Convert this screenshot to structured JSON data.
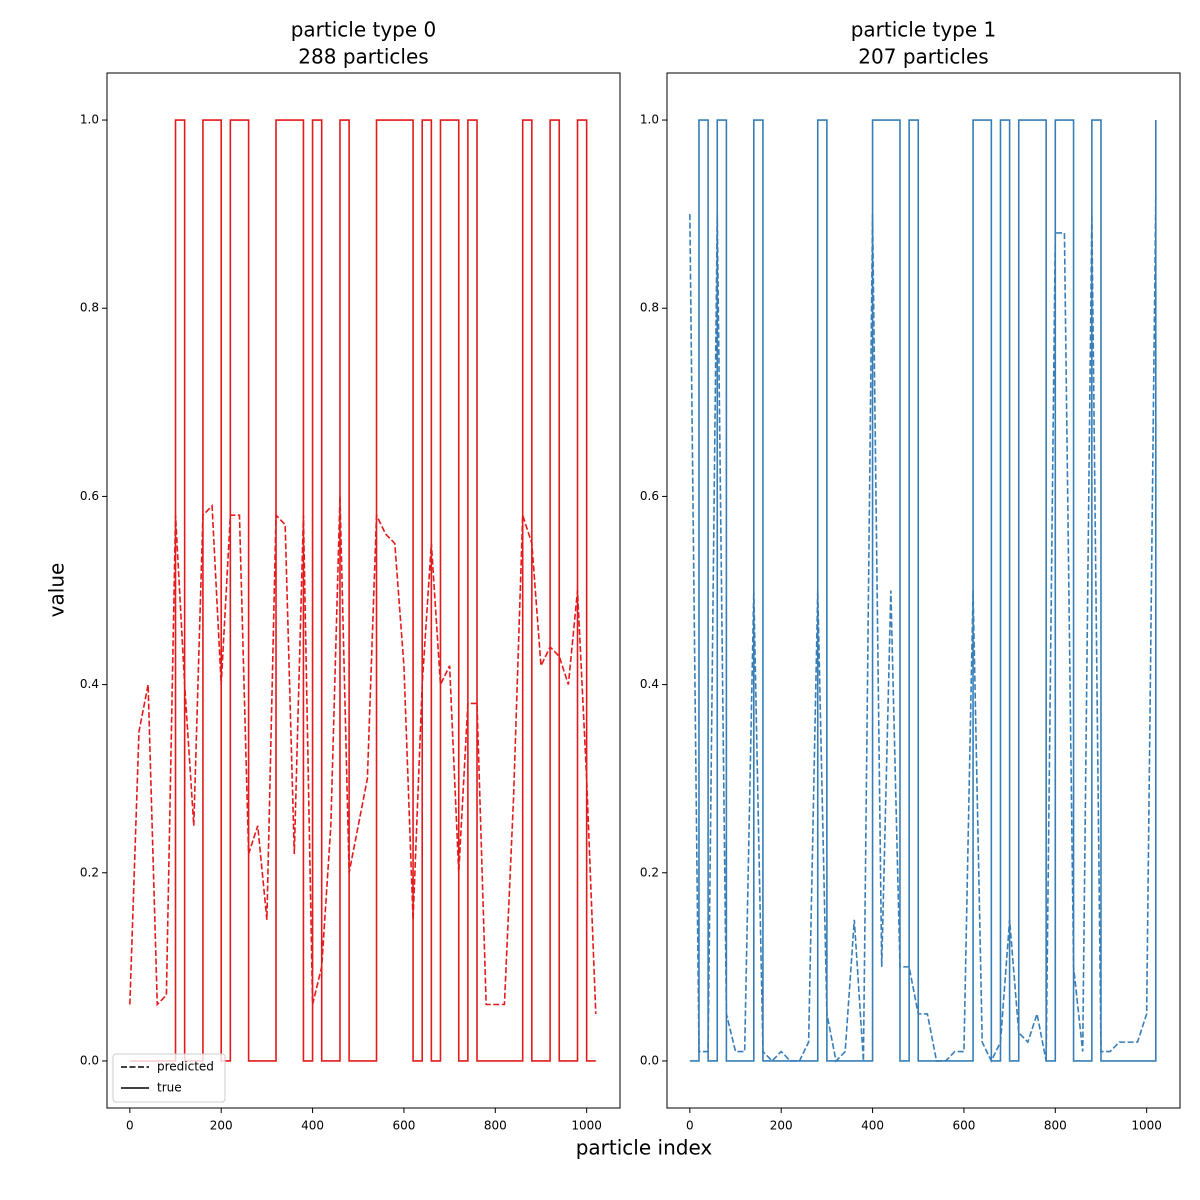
{
  "figure": {
    "xlabel": "particle index",
    "ylabel": "value"
  },
  "chart_data": [
    {
      "type": "line",
      "title": "particle type 0",
      "subtitle": "288 particles",
      "xlim": [
        -50,
        1073
      ],
      "ylim": [
        -0.05,
        1.05
      ],
      "xticks": [
        0,
        200,
        400,
        600,
        800,
        1000
      ],
      "yticks": [
        {
          "value": 0,
          "label": "0.0"
        },
        0.2,
        0.4,
        0.6,
        0.8,
        {
          "value": 1,
          "label": "1.0"
        }
      ],
      "legend": "lower left",
      "legend_color": "#000000",
      "x": [
        0,
        20,
        40,
        60,
        80,
        100,
        120,
        140,
        160,
        180,
        200,
        220,
        240,
        260,
        280,
        300,
        320,
        340,
        360,
        380,
        400,
        420,
        440,
        460,
        480,
        500,
        520,
        540,
        560,
        580,
        600,
        620,
        640,
        660,
        680,
        700,
        720,
        740,
        760,
        780,
        800,
        820,
        840,
        860,
        880,
        900,
        920,
        940,
        960,
        980,
        1000,
        1020
      ],
      "series": [
        {
          "name": "predicted",
          "color": "#e41a1c",
          "linestyle": "dashed",
          "values": [
            0.06,
            0.35,
            0.4,
            0.06,
            0.07,
            0.58,
            0.4,
            0.25,
            0.58,
            0.59,
            0.4,
            0.58,
            0.58,
            0.22,
            0.25,
            0.15,
            0.58,
            0.57,
            0.22,
            0.58,
            0.06,
            0.1,
            0.25,
            0.6,
            0.2,
            0.25,
            0.3,
            0.58,
            0.56,
            0.55,
            0.42,
            0.15,
            0.4,
            0.55,
            0.4,
            0.42,
            0.2,
            0.38,
            0.38,
            0.06,
            0.06,
            0.06,
            0.28,
            0.58,
            0.55,
            0.42,
            0.44,
            0.43,
            0.4,
            0.5,
            0.3,
            0.05
          ]
        },
        {
          "name": "true",
          "color": "#e41a1c",
          "linestyle": "solid",
          "drawstyle": "steps",
          "values": [
            0,
            0,
            0,
            0,
            0,
            1,
            0,
            0,
            1,
            1,
            0,
            1,
            1,
            0,
            0,
            0,
            1,
            1,
            1,
            0,
            1,
            0,
            0,
            1,
            0,
            0,
            0,
            1,
            1,
            1,
            1,
            0,
            1,
            0,
            1,
            1,
            0,
            1,
            0,
            0,
            0,
            0,
            0,
            1,
            0,
            0,
            1,
            0,
            0,
            1,
            0,
            0
          ]
        }
      ]
    },
    {
      "type": "line",
      "title": "particle type 1",
      "subtitle": "207 particles",
      "xlim": [
        -50,
        1073
      ],
      "ylim": [
        -0.05,
        1.05
      ],
      "xticks": [
        0,
        200,
        400,
        600,
        800,
        1000
      ],
      "yticks": [
        {
          "value": 0,
          "label": "0.0"
        },
        0.2,
        0.4,
        0.6,
        0.8,
        {
          "value": 1,
          "label": "1.0"
        }
      ],
      "x": [
        0,
        20,
        40,
        60,
        80,
        100,
        120,
        140,
        160,
        180,
        200,
        220,
        240,
        260,
        280,
        300,
        320,
        340,
        360,
        380,
        400,
        420,
        440,
        460,
        480,
        500,
        520,
        540,
        560,
        580,
        600,
        620,
        640,
        660,
        680,
        700,
        720,
        740,
        760,
        780,
        800,
        820,
        840,
        860,
        880,
        900,
        920,
        940,
        960,
        980,
        1000,
        1020
      ],
      "series": [
        {
          "color": "#377eb8",
          "linestyle": "dashed",
          "values": [
            0.9,
            0.01,
            0.01,
            0.9,
            0.05,
            0.01,
            0.01,
            0.5,
            0.01,
            0.0,
            0.01,
            0.0,
            0.0,
            0.02,
            0.5,
            0.05,
            0.0,
            0.01,
            0.15,
            0.0,
            0.9,
            0.1,
            0.5,
            0.1,
            0.1,
            0.05,
            0.05,
            0.0,
            0.0,
            0.01,
            0.01,
            0.5,
            0.02,
            0.0,
            0.02,
            0.15,
            0.03,
            0.02,
            0.05,
            0.0,
            0.88,
            0.88,
            0.1,
            0.01,
            0.9,
            0.01,
            0.01,
            0.02,
            0.02,
            0.02,
            0.05,
            0.92
          ]
        },
        {
          "color": "#377eb8",
          "linestyle": "solid",
          "drawstyle": "steps",
          "values": [
            0,
            1,
            0,
            1,
            0,
            0,
            0,
            1,
            0,
            0,
            0,
            0,
            0,
            0,
            1,
            0,
            0,
            0,
            0,
            0,
            1,
            1,
            1,
            0,
            1,
            0,
            0,
            0,
            0,
            0,
            0,
            1,
            1,
            0,
            1,
            0,
            1,
            1,
            1,
            0,
            1,
            1,
            0,
            0,
            1,
            0,
            0,
            0,
            0,
            0,
            0,
            1
          ]
        }
      ]
    }
  ]
}
